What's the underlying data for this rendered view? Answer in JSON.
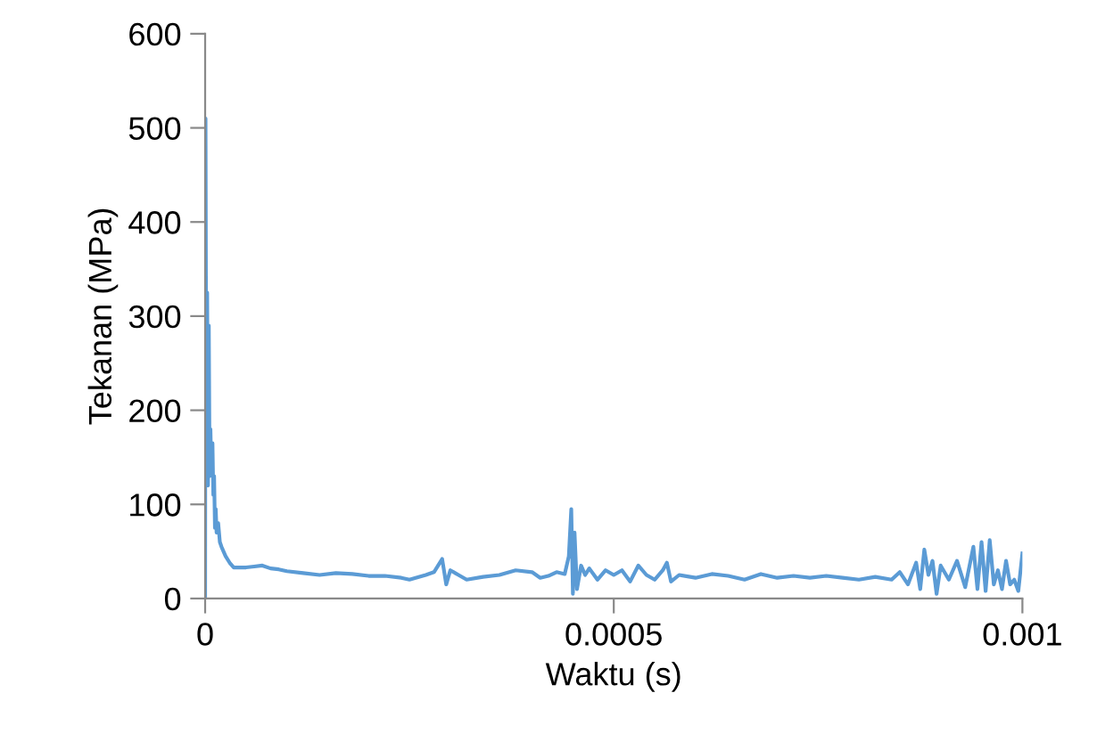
{
  "chart_data": {
    "type": "line",
    "xlabel": "Waktu (s)",
    "ylabel": "Tekanan (MPa)",
    "x": [
      0,
      5e-07,
      1.5e-06,
      2.5e-06,
      3.5e-06,
      4.5e-06,
      5.5e-06,
      6.5e-06,
      7.5e-06,
      9e-06,
      1e-05,
      1.1e-05,
      1.2e-05,
      1.3e-05,
      1.4e-05,
      1.6e-05,
      1.8e-05,
      2e-05,
      2.5e-05,
      3e-05,
      3.5e-05,
      4e-05,
      5e-05,
      6e-05,
      7e-05,
      8e-05,
      9e-05,
      0.0001,
      0.00012,
      0.00014,
      0.00016,
      0.00018,
      0.0002,
      0.00022,
      0.00024,
      0.00025,
      0.00027,
      0.00028,
      0.00029,
      0.000295,
      0.0003,
      0.00031,
      0.00032,
      0.00034,
      0.00036,
      0.00038,
      0.0004,
      0.00041,
      0.00042,
      0.00043,
      0.00044,
      0.000445,
      0.000448,
      0.00045,
      0.000452,
      0.000455,
      0.00046,
      0.000465,
      0.00047,
      0.00048,
      0.00049,
      0.0005,
      0.00051,
      0.00052,
      0.00053,
      0.00054,
      0.00055,
      0.00056,
      0.000565,
      0.00057,
      0.00058,
      0.0006,
      0.00062,
      0.00064,
      0.00066,
      0.00068,
      0.0007,
      0.00072,
      0.00074,
      0.00076,
      0.00078,
      0.0008,
      0.00082,
      0.00084,
      0.00085,
      0.00086,
      0.00087,
      0.000875,
      0.00088,
      0.000885,
      0.00089,
      0.000895,
      0.0009,
      0.00091,
      0.00092,
      0.00093,
      0.00094,
      0.000945,
      0.00095,
      0.000955,
      0.00096,
      0.000965,
      0.00097,
      0.000975,
      0.00098,
      0.000985,
      0.00099,
      0.000995,
      0.001
    ],
    "series": [
      {
        "color": "#5b9bd5",
        "values": [
          0,
          510,
          150,
          325,
          120,
          290,
          130,
          180,
          140,
          165,
          110,
          130,
          75,
          95,
          70,
          80,
          60,
          55,
          45,
          38,
          33,
          33,
          33,
          34,
          35,
          32,
          31,
          29,
          27,
          25,
          27,
          26,
          24,
          24,
          22,
          20,
          25,
          28,
          42,
          15,
          30,
          25,
          20,
          23,
          25,
          30,
          28,
          22,
          24,
          28,
          26,
          45,
          95,
          5,
          70,
          10,
          35,
          25,
          32,
          20,
          30,
          25,
          30,
          18,
          35,
          25,
          20,
          30,
          38,
          18,
          25,
          22,
          26,
          24,
          20,
          26,
          22,
          24,
          22,
          24,
          22,
          20,
          23,
          20,
          28,
          15,
          38,
          10,
          52,
          25,
          40,
          5,
          35,
          20,
          40,
          12,
          55,
          10,
          60,
          8,
          62,
          15,
          30,
          10,
          40,
          15,
          20,
          8,
          48
        ]
      }
    ],
    "xlim": [
      0,
      0.001
    ],
    "xticks": [
      0,
      0.0005,
      0.001
    ],
    "ylim": [
      0,
      600
    ],
    "yticks": [
      0,
      100,
      200,
      300,
      400,
      500,
      600
    ],
    "grid": false,
    "marker": "none",
    "line_style": "solid"
  }
}
